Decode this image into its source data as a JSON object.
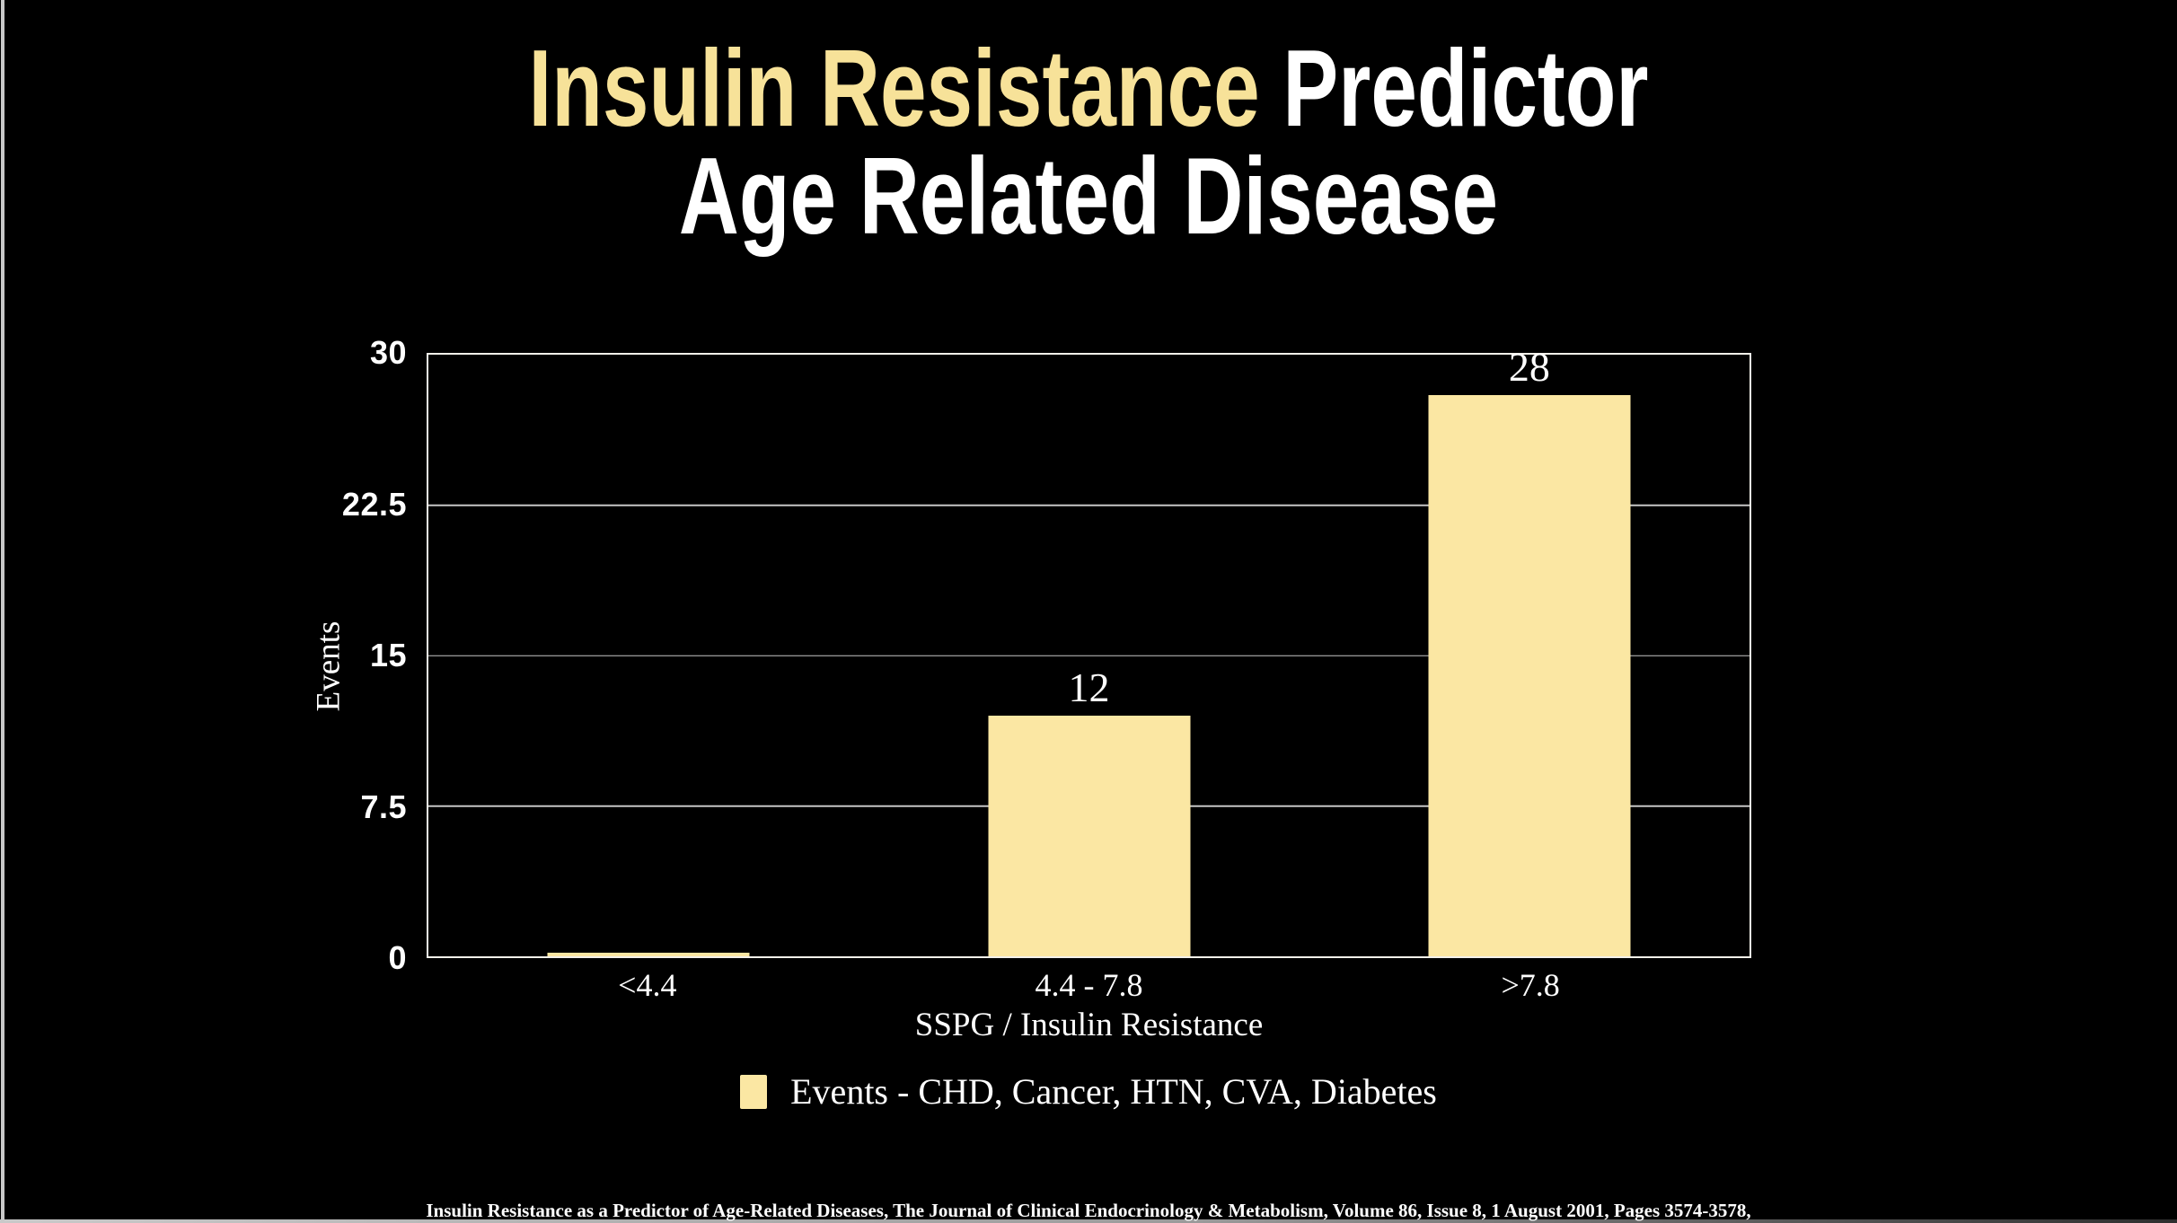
{
  "title": {
    "line1_accent": "Insulin Resistance",
    "line1_rest": " Predictor",
    "line2": "Age Related Disease"
  },
  "chart_data": {
    "type": "bar",
    "title": "Insulin Resistance Predictor - Age Related Disease",
    "categories": [
      "<4.4",
      "4.4 - 7.8",
      ">7.8"
    ],
    "values": [
      0,
      12,
      28
    ],
    "bar_labels": [
      "",
      "12",
      "28"
    ],
    "xlabel": "SSPG / Insulin Resistance",
    "ylabel": "Events",
    "ylim": [
      0,
      30
    ],
    "yticks": [
      0,
      7.5,
      15,
      22.5,
      30
    ],
    "grid": true,
    "legend_position": "bottom",
    "legend_label": "Events - CHD, Cancer, HTN, CVA, Diabetes",
    "bar_color": "#FBE7A3"
  },
  "citation": "Insulin Resistance as a Predictor of Age-Related Diseases, The Journal of Clinical Endocrinology & Metabolism, Volume 86, Issue 8, 1 August 2001, Pages 3574-3578,",
  "colors": {
    "background": "#000000",
    "title_accent": "#F7E299",
    "title_text": "#FFFFFF",
    "bar_fill": "#FBE7A3",
    "axis_border": "#F3F1EA",
    "gridline": "#C6C6C6",
    "screen_edge": "#C9C9C9"
  }
}
